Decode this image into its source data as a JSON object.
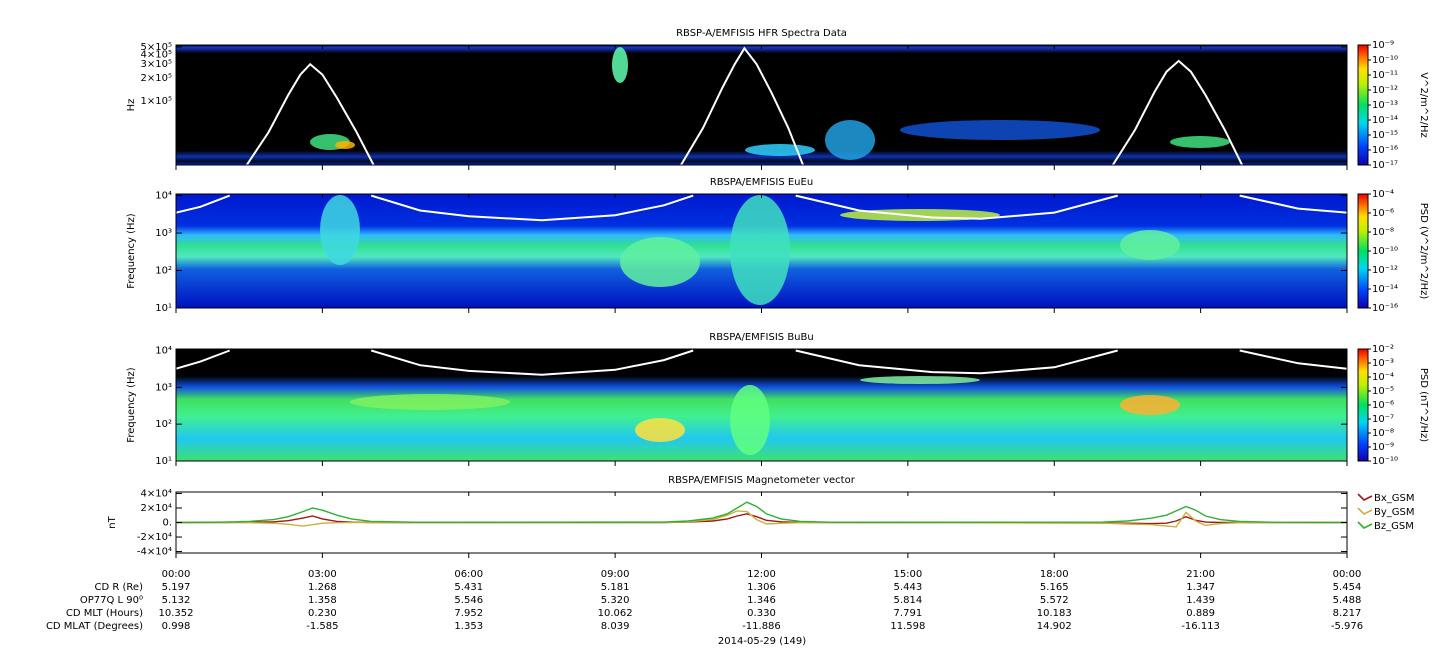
{
  "chart_data": [
    {
      "type": "spectrogram",
      "title": "RBSP-A/EMFISIS  HFR Spectra Data",
      "ylabel": "Hz",
      "log": true,
      "ylim": [
        15000,
        530000
      ],
      "yticks": [
        {
          "value": 500000,
          "label": "5×10⁵"
        },
        {
          "value": 400000,
          "label": "4×10⁵"
        },
        {
          "value": 300000,
          "label": "3×10⁵"
        },
        {
          "value": 200000,
          "label": "2×10⁵"
        },
        {
          "value": 100000,
          "label": "1×10⁵"
        }
      ],
      "overlay": {
        "color": "#ffffff",
        "x": [
          1.45,
          1.9,
          2.3,
          2.55,
          2.75,
          3.0,
          3.3,
          3.7,
          4.05,
          null,
          10.35,
          10.8,
          11.2,
          11.45,
          11.65,
          11.9,
          12.2,
          12.55,
          12.85,
          null,
          19.2,
          19.65,
          20.05,
          20.3,
          20.55,
          20.8,
          21.1,
          21.5,
          21.85
        ],
        "values": [
          15000,
          40000,
          120000,
          220000,
          300000,
          220000,
          110000,
          40000,
          15000,
          null,
          15000,
          45000,
          150000,
          300000,
          480000,
          300000,
          130000,
          45000,
          15000,
          null,
          15000,
          42000,
          130000,
          240000,
          330000,
          240000,
          120000,
          42000,
          15000
        ]
      },
      "colorbar": {
        "label": "V^2/m^2/Hz",
        "clim": [
          1e-17,
          1e-09
        ],
        "ticks": [
          {
            "value": 1e-09,
            "label": "10⁻⁹"
          },
          {
            "value": 1e-10,
            "label": "10⁻¹⁰"
          },
          {
            "value": 1e-11,
            "label": "10⁻¹¹"
          },
          {
            "value": 1e-12,
            "label": "10⁻¹²"
          },
          {
            "value": 1e-13,
            "label": "10⁻¹³"
          },
          {
            "value": 1e-14,
            "label": "10⁻¹⁴"
          },
          {
            "value": 1e-15,
            "label": "10⁻¹⁵"
          },
          {
            "value": 1e-16,
            "label": "10⁻¹⁶"
          },
          {
            "value": 1e-17,
            "label": "10⁻¹⁷"
          }
        ]
      }
    },
    {
      "type": "spectrogram",
      "title": "RBSPA/EMFISIS  EuEu",
      "ylabel": "Frequency (Hz)",
      "log": true,
      "ylim": [
        10,
        11000
      ],
      "yticks": [
        {
          "value": 10,
          "label": "10¹"
        },
        {
          "value": 100,
          "label": "10²"
        },
        {
          "value": 1000,
          "label": "10³"
        },
        {
          "value": 10000,
          "label": "10⁴"
        }
      ],
      "overlay": {
        "color": "#ffffff",
        "x": [
          0,
          0.5,
          1.1,
          null,
          4.0,
          5,
          6,
          7.5,
          9,
          10,
          10.6,
          null,
          12.7,
          14,
          15.5,
          16.5,
          18,
          19.3,
          null,
          21.8,
          23,
          24
        ],
        "values": [
          3500,
          5000,
          10000,
          null,
          10000,
          4000,
          2800,
          2200,
          3000,
          5500,
          10000,
          null,
          10000,
          4000,
          2600,
          2400,
          3500,
          10000,
          null,
          10000,
          4500,
          3500
        ]
      },
      "colorbar": {
        "label": "PSD (V^2/m^2/Hz)",
        "clim": [
          1e-16,
          0.0001
        ],
        "ticks": [
          {
            "value": 0.0001,
            "label": "10⁻⁴"
          },
          {
            "value": 1e-06,
            "label": "10⁻⁶"
          },
          {
            "value": 1e-08,
            "label": "10⁻⁸"
          },
          {
            "value": 1e-10,
            "label": "10⁻¹⁰"
          },
          {
            "value": 1e-12,
            "label": "10⁻¹²"
          },
          {
            "value": 1e-14,
            "label": "10⁻¹⁴"
          },
          {
            "value": 1e-16,
            "label": "10⁻¹⁶"
          }
        ]
      }
    },
    {
      "type": "spectrogram",
      "title": "RBSPA/EMFISIS  BuBu",
      "ylabel": "Frequency (Hz)",
      "log": true,
      "ylim": [
        10,
        11000
      ],
      "yticks": [
        {
          "value": 10,
          "label": "10¹"
        },
        {
          "value": 100,
          "label": "10²"
        },
        {
          "value": 1000,
          "label": "10³"
        },
        {
          "value": 10000,
          "label": "10⁴"
        }
      ],
      "overlay": {
        "color": "#ffffff",
        "x": [
          0,
          0.5,
          1.1,
          null,
          4.0,
          5,
          6,
          7.5,
          9,
          10,
          10.6,
          null,
          12.7,
          14,
          15.5,
          16.5,
          18,
          19.3,
          null,
          21.8,
          23,
          24
        ],
        "values": [
          3200,
          5000,
          10000,
          null,
          10000,
          4000,
          2800,
          2200,
          3000,
          5500,
          10000,
          null,
          10000,
          4000,
          2600,
          2400,
          3500,
          10000,
          null,
          10000,
          4500,
          3200
        ]
      },
      "colorbar": {
        "label": "PSD (nT^2/Hz)",
        "clim": [
          1e-10,
          0.01
        ],
        "ticks": [
          {
            "value": 0.01,
            "label": "10⁻²"
          },
          {
            "value": 0.001,
            "label": "10⁻³"
          },
          {
            "value": 0.0001,
            "label": "10⁻⁴"
          },
          {
            "value": 1e-05,
            "label": "10⁻⁵"
          },
          {
            "value": 1e-06,
            "label": "10⁻⁶"
          },
          {
            "value": 1e-07,
            "label": "10⁻⁷"
          },
          {
            "value": 1e-08,
            "label": "10⁻⁸"
          },
          {
            "value": 1e-09,
            "label": "10⁻⁹"
          },
          {
            "value": 1e-10,
            "label": "10⁻¹⁰"
          }
        ]
      }
    },
    {
      "type": "line",
      "title": "RBSPA/EMFISIS  Magnetometer vector",
      "ylabel": "nT",
      "legend": "right",
      "ylim": [
        -42000,
        42000
      ],
      "yticks": [
        {
          "value": 40000,
          "label": "4×10⁴"
        },
        {
          "value": 20000,
          "label": "2×10⁴"
        },
        {
          "value": 0,
          "label": "0."
        },
        {
          "value": -20000,
          "label": "-2×10⁴"
        },
        {
          "value": -40000,
          "label": "-4×10⁴"
        }
      ],
      "x": [
        0,
        1,
        1.5,
        2,
        2.3,
        2.6,
        2.8,
        3.0,
        3.3,
        3.6,
        4,
        5,
        10,
        10.5,
        11,
        11.3,
        11.5,
        11.7,
        11.9,
        12.1,
        12.4,
        12.8,
        13.5,
        19,
        19.5,
        20,
        20.3,
        20.5,
        20.7,
        20.9,
        21.1,
        21.4,
        21.8,
        22.5,
        24
      ],
      "series": [
        {
          "name": "Bx_GSM",
          "color": "#a01818",
          "values": [
            0,
            0,
            300,
            1000,
            2500,
            6000,
            9000,
            5000,
            1500,
            500,
            0,
            0,
            0,
            500,
            2000,
            5000,
            9000,
            12000,
            8000,
            3000,
            1000,
            200,
            0,
            -500,
            -1000,
            -1500,
            -1000,
            2000,
            8000,
            3000,
            500,
            0,
            0,
            0,
            0
          ]
        },
        {
          "name": "By_GSM",
          "color": "#c8b040",
          "values": [
            0,
            0,
            -300,
            -1000,
            -2500,
            -5000,
            -3000,
            -1000,
            -300,
            0,
            0,
            0,
            0,
            1000,
            4000,
            10000,
            16000,
            15000,
            4000,
            -2000,
            -1000,
            -300,
            0,
            -1000,
            -2000,
            -3000,
            -5000,
            -6000,
            14000,
            2000,
            -4000,
            -1500,
            -300,
            0,
            0
          ]
        },
        {
          "name": "Bz_GSM",
          "color": "#30b030",
          "values": [
            0,
            500,
            1500,
            4000,
            8000,
            15000,
            20000,
            17000,
            10000,
            5000,
            1500,
            300,
            500,
            2000,
            6000,
            12000,
            20000,
            28000,
            22000,
            12000,
            5000,
            1500,
            300,
            500,
            2000,
            6000,
            10000,
            16000,
            22000,
            17000,
            9000,
            4000,
            1500,
            300,
            0
          ]
        }
      ]
    }
  ],
  "time_axis": {
    "xlim": [
      0,
      24
    ],
    "xticks": [
      {
        "value": 0,
        "label": "00:00"
      },
      {
        "value": 3,
        "label": "03:00"
      },
      {
        "value": 6,
        "label": "06:00"
      },
      {
        "value": 9,
        "label": "09:00"
      },
      {
        "value": 12,
        "label": "12:00"
      },
      {
        "value": 15,
        "label": "15:00"
      },
      {
        "value": 18,
        "label": "18:00"
      },
      {
        "value": 21,
        "label": "21:00"
      },
      {
        "value": 24,
        "label": "00:00"
      }
    ]
  },
  "ephemeris": {
    "rows": [
      {
        "label": "CD R (Re)",
        "values": [
          "5.197",
          "1.268",
          "5.431",
          "5.181",
          "1.306",
          "5.443",
          "5.165",
          "1.347",
          "5.454"
        ]
      },
      {
        "label": "OP77Q L 90⁰",
        "values": [
          "5.132",
          "1.358",
          "5.546",
          "5.320",
          "1.346",
          "5.814",
          "5.572",
          "1.439",
          "5.488"
        ]
      },
      {
        "label": "CD MLT (Hours)",
        "values": [
          "10.352",
          "0.230",
          "7.952",
          "10.062",
          "0.330",
          "7.791",
          "10.183",
          "0.889",
          "8.217"
        ]
      },
      {
        "label": "CD MLAT (Degrees)",
        "values": [
          "0.998",
          "-1.585",
          "1.353",
          "8.039",
          "-11.886",
          "11.598",
          "14.902",
          "-16.113",
          "-5.976"
        ]
      }
    ]
  },
  "date": "2014-05-29 (149)"
}
